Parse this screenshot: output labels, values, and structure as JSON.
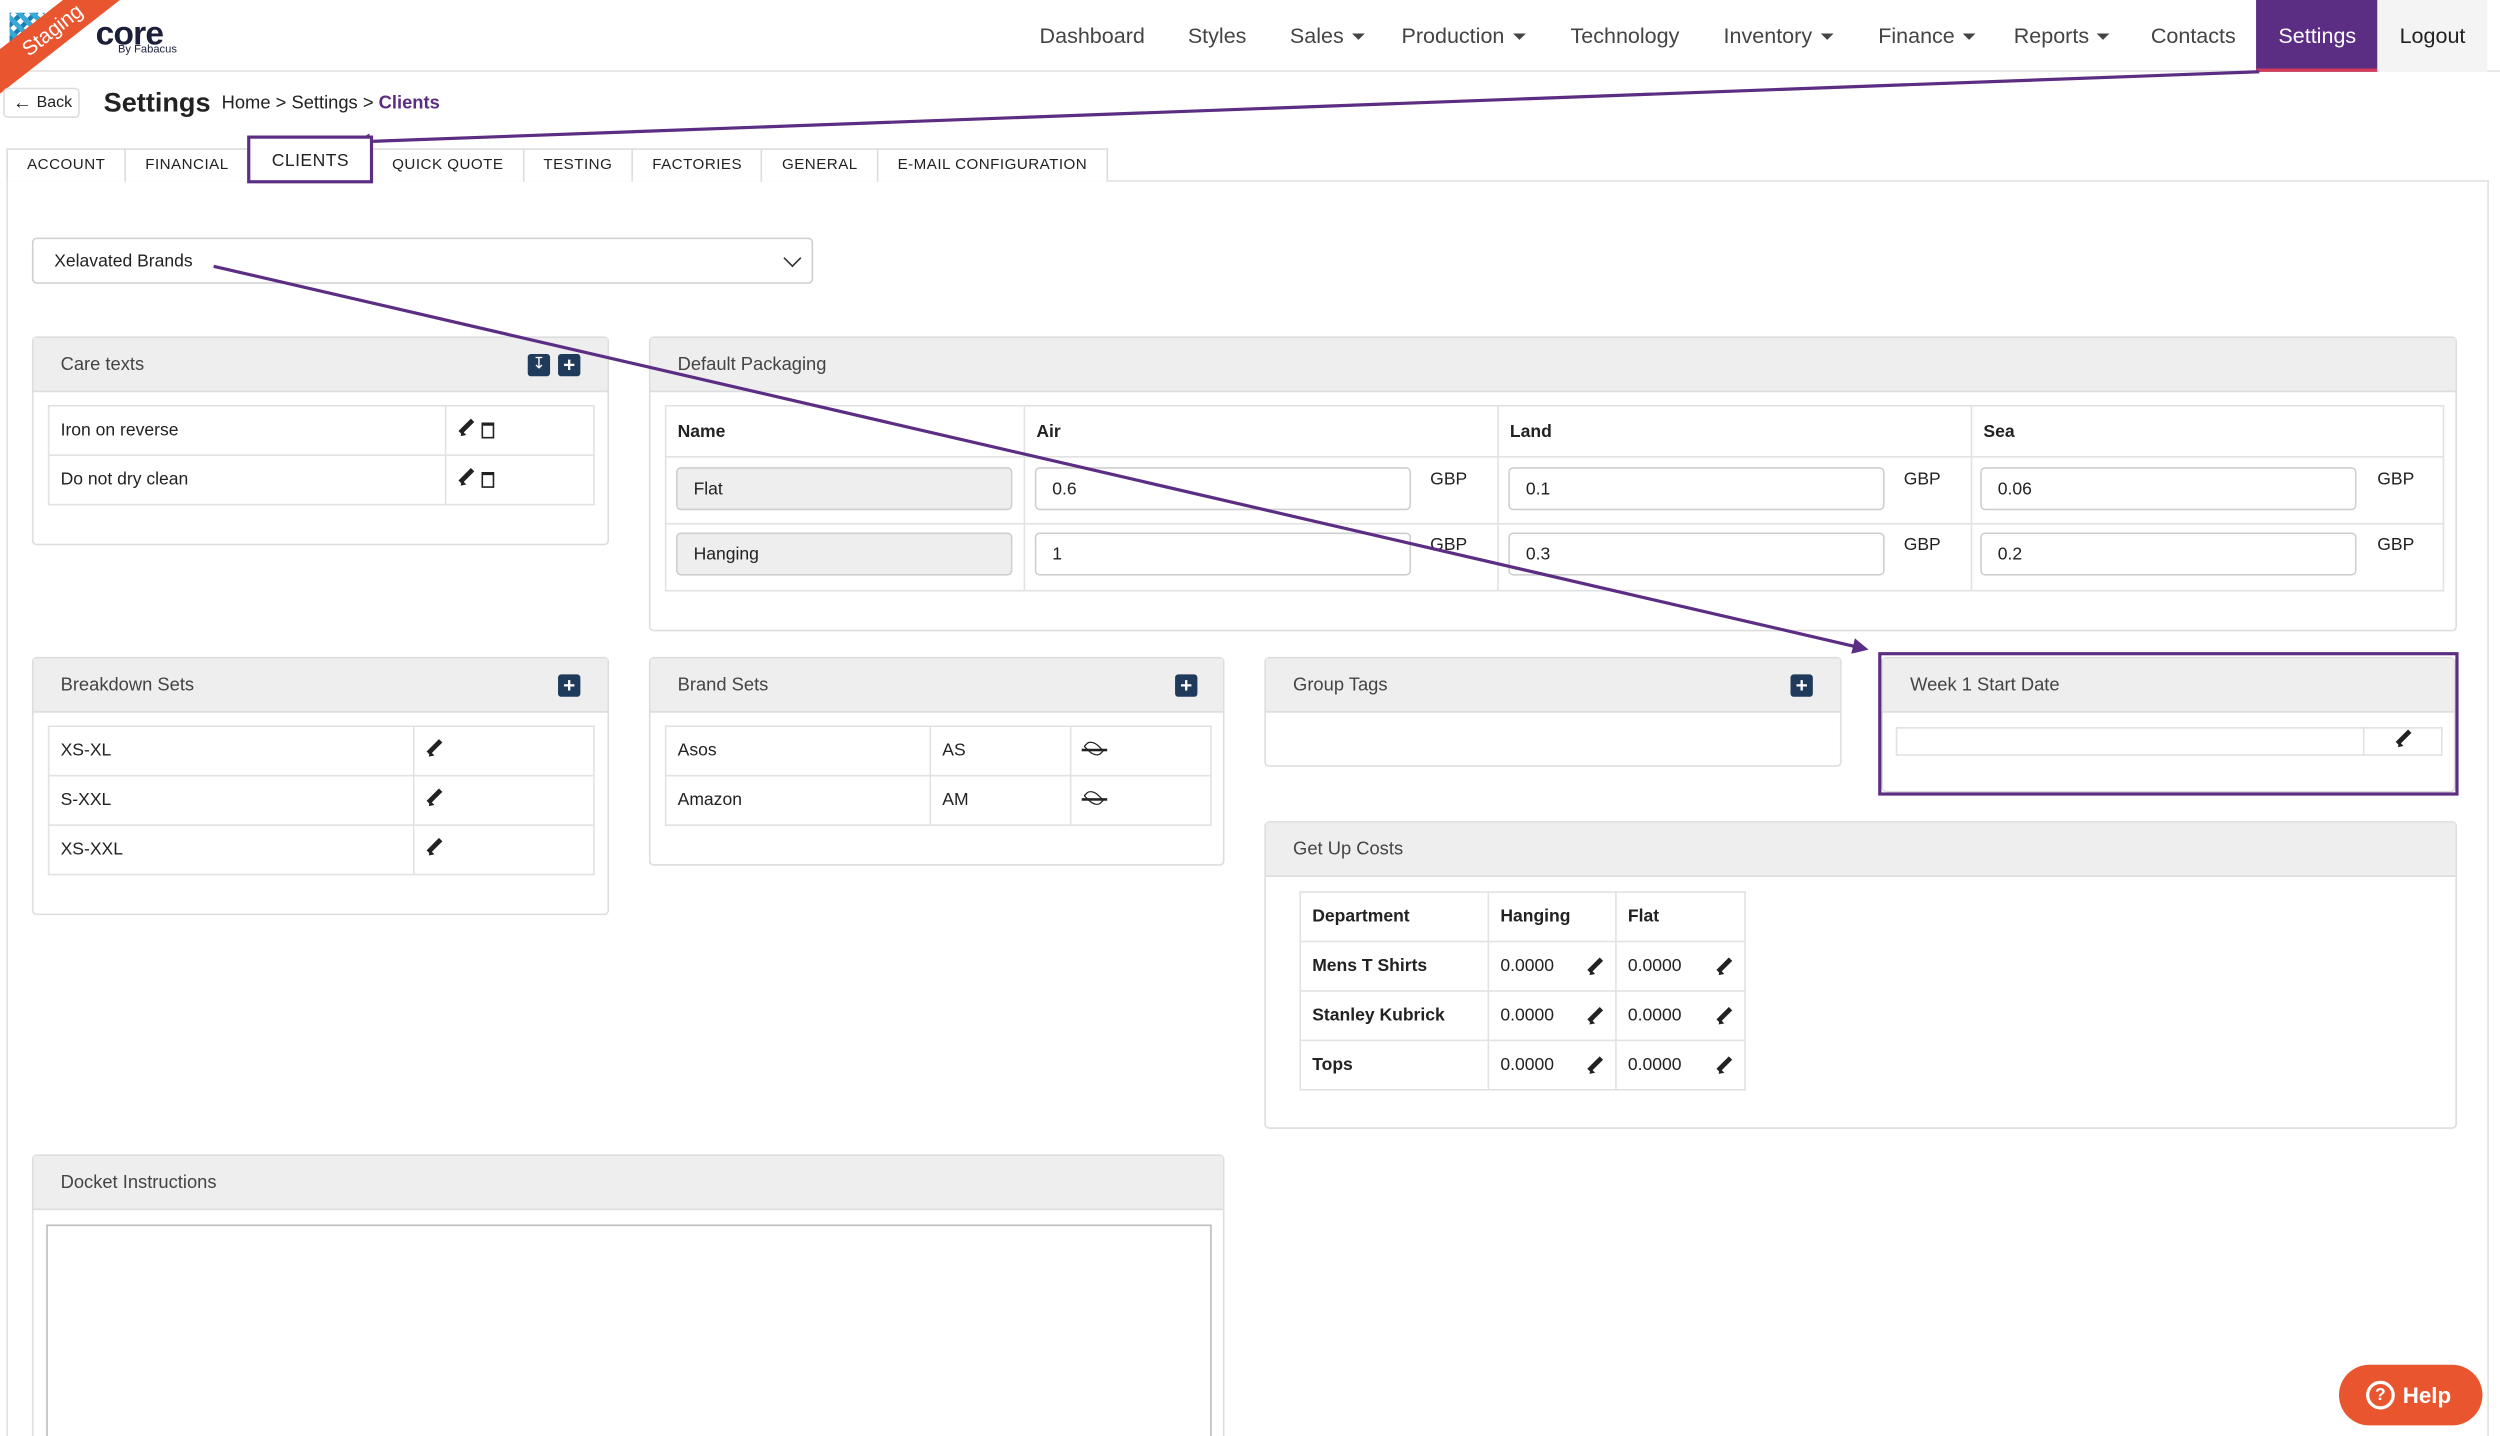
{
  "brand": {
    "badge": "Staging",
    "logo": "core",
    "logo_sub": "By Fabacus"
  },
  "nav": {
    "items": [
      {
        "label": "Dashboard",
        "caret": false
      },
      {
        "label": "Styles",
        "caret": false
      },
      {
        "label": "Sales",
        "caret": true
      },
      {
        "label": "Production",
        "caret": true
      },
      {
        "label": "Technology",
        "caret": false
      },
      {
        "label": "Inventory",
        "caret": true
      },
      {
        "label": "Finance",
        "caret": true
      },
      {
        "label": "Reports",
        "caret": true
      },
      {
        "label": "Contacts",
        "caret": false
      }
    ],
    "settings": "Settings",
    "logout": "Logout"
  },
  "subheader": {
    "back": "Back",
    "title": "Settings",
    "crumb_home": "Home",
    "crumb_settings": "Settings",
    "crumb_current": "Clients",
    "sep": ">"
  },
  "tabs": [
    "ACCOUNT",
    "FINANCIAL",
    "CLIENTS",
    "QUICK QUOTE",
    "TESTING",
    "FACTORIES",
    "GENERAL",
    "E-MAIL CONFIGURATION"
  ],
  "client_select": {
    "value": "Xelavated Brands"
  },
  "care_texts": {
    "title": "Care texts",
    "items": [
      "Iron on reverse",
      "Do not dry clean"
    ]
  },
  "packaging": {
    "title": "Default Packaging",
    "columns": [
      "Name",
      "Air",
      "Land",
      "Sea"
    ],
    "currency": "GBP",
    "rows": [
      {
        "name": "Flat",
        "air": "0.6",
        "land": "0.1",
        "sea": "0.06"
      },
      {
        "name": "Hanging",
        "air": "1",
        "land": "0.3",
        "sea": "0.2"
      }
    ]
  },
  "breakdown_sets": {
    "title": "Breakdown Sets",
    "items": [
      "XS-XL",
      "S-XXL",
      "XS-XXL"
    ]
  },
  "brand_sets": {
    "title": "Brand Sets",
    "items": [
      {
        "name": "Asos",
        "code": "AS"
      },
      {
        "name": "Amazon",
        "code": "AM"
      }
    ]
  },
  "group_tags": {
    "title": "Group Tags"
  },
  "week1": {
    "title": "Week 1 Start Date"
  },
  "getup": {
    "title": "Get Up Costs",
    "columns": [
      "Department",
      "Hanging",
      "Flat"
    ],
    "rows": [
      {
        "dept": "Mens T Shirts",
        "hanging": "0.0000",
        "flat": "0.0000"
      },
      {
        "dept": "Stanley Kubrick",
        "hanging": "0.0000",
        "flat": "0.0000"
      },
      {
        "dept": "Tops",
        "hanging": "0.0000",
        "flat": "0.0000"
      }
    ]
  },
  "docket": {
    "title": "Docket Instructions"
  },
  "help": {
    "label": "Help",
    "icon": "help-question-icon"
  },
  "colors": {
    "accent": "#5b2d83",
    "help": "#e8552e",
    "addbtn": "#1f3a5a"
  }
}
